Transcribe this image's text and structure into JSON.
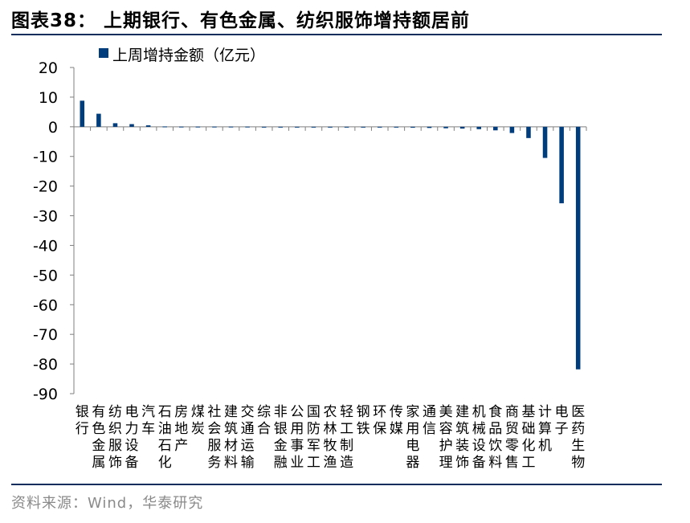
{
  "figure": {
    "title": "图表38： 上期银行、有色金属、纺织服饰增持额居前",
    "source": "资料来源：Wind，华泰研究"
  },
  "colors": {
    "bar": "#003d7d",
    "axis": "#7f7f7f",
    "rule": "#0d2d5c"
  },
  "chart_data": {
    "type": "bar",
    "title": "",
    "xlabel": "",
    "ylabel": "",
    "ylim": [
      -90,
      20
    ],
    "yticks": [
      20,
      10,
      0,
      -10,
      -20,
      -30,
      -40,
      -50,
      -60,
      -70,
      -80,
      -90
    ],
    "grid": false,
    "legend_position": "top-left",
    "categories": [
      "银行",
      "有色金属",
      "纺织服饰",
      "电力设备",
      "汽车",
      "石油石化",
      "房地产",
      "煤炭",
      "社会服务",
      "建筑材料",
      "交通运输",
      "综合",
      "非银金融",
      "公用事业",
      "国防军工",
      "农林牧渔",
      "轻工制造",
      "钢铁",
      "环保",
      "传媒",
      "家用电器",
      "通信",
      "美容护理",
      "建筑装饰",
      "机械设备",
      "食品饮料",
      "商贸零售",
      "基础化工",
      "计算机",
      "电子",
      "医药生物"
    ],
    "series": [
      {
        "name": "上周增持金额（亿元）",
        "values": [
          8.8,
          4.4,
          1.2,
          0.9,
          0.5,
          0.1,
          0.05,
          0.05,
          0.05,
          0.05,
          0.05,
          0.0,
          0.0,
          -0.05,
          -0.05,
          -0.05,
          -0.05,
          -0.05,
          -0.05,
          -0.1,
          -0.3,
          -0.4,
          -0.5,
          -0.6,
          -0.8,
          -1.2,
          -2.1,
          -3.8,
          -10.5,
          -25.8,
          -81.8
        ]
      }
    ]
  }
}
